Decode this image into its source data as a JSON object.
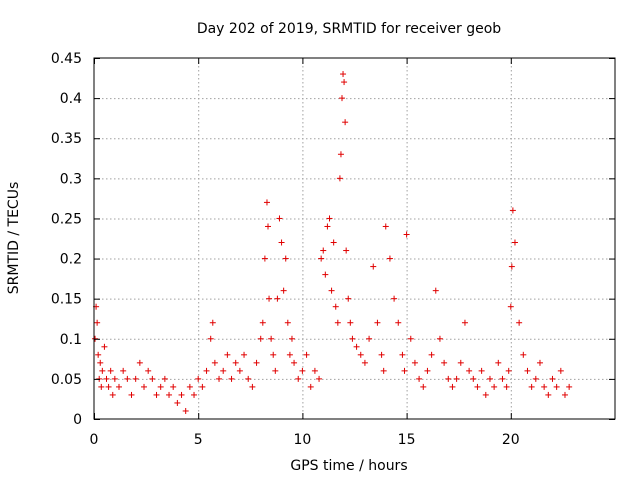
{
  "chart_data": {
    "type": "scatter",
    "title": "Day 202 of 2019, SRMTID for receiver geob",
    "xlabel": "GPS time / hours",
    "ylabel": "SRMTID / TECUs",
    "xlim": [
      0,
      25
    ],
    "ylim": [
      0,
      0.45
    ],
    "xticks": [
      0,
      5,
      10,
      15,
      20
    ],
    "yticks": [
      0,
      0.05,
      0.1,
      0.15,
      0.2,
      0.25,
      0.3,
      0.35,
      0.4,
      0.45
    ],
    "xtick_labels": [
      "0",
      "5",
      "10",
      "15",
      "20"
    ],
    "ytick_labels": [
      "0",
      "0.05",
      "0.1",
      "0.15",
      "0.2",
      "0.25",
      "0.3",
      "0.35",
      "0.4",
      "0.45"
    ],
    "grid": true,
    "marker": "+",
    "color": "#e00000",
    "series": [
      {
        "name": "SRMTID",
        "x": [
          0.05,
          0.1,
          0.15,
          0.2,
          0.25,
          0.3,
          0.35,
          0.4,
          0.5,
          0.6,
          0.7,
          0.8,
          0.9,
          1.0,
          1.2,
          1.4,
          1.6,
          1.8,
          2.0,
          2.2,
          2.4,
          2.6,
          2.8,
          3.0,
          3.2,
          3.4,
          3.6,
          3.8,
          4.0,
          4.2,
          4.4,
          4.6,
          4.8,
          5.0,
          5.2,
          5.4,
          5.6,
          5.7,
          5.8,
          6.0,
          6.2,
          6.4,
          6.6,
          6.8,
          7.0,
          7.2,
          7.4,
          7.6,
          7.8,
          8.0,
          8.1,
          8.2,
          8.3,
          8.35,
          8.4,
          8.5,
          8.6,
          8.7,
          8.8,
          8.9,
          9.0,
          9.1,
          9.2,
          9.3,
          9.4,
          9.5,
          9.6,
          9.8,
          10.0,
          10.2,
          10.4,
          10.6,
          10.8,
          10.9,
          11.0,
          11.1,
          11.2,
          11.3,
          11.4,
          11.5,
          11.6,
          11.7,
          11.8,
          11.85,
          11.9,
          11.95,
          12.0,
          12.05,
          12.1,
          12.2,
          12.3,
          12.4,
          12.6,
          12.8,
          13.0,
          13.2,
          13.4,
          13.6,
          13.8,
          13.9,
          14.0,
          14.2,
          14.4,
          14.6,
          14.8,
          14.9,
          15.0,
          15.2,
          15.4,
          15.6,
          15.8,
          16.0,
          16.2,
          16.4,
          16.6,
          16.8,
          17.0,
          17.2,
          17.4,
          17.6,
          17.8,
          18.0,
          18.2,
          18.4,
          18.6,
          18.8,
          19.0,
          19.2,
          19.4,
          19.6,
          19.8,
          19.9,
          20.0,
          20.05,
          20.1,
          20.2,
          20.4,
          20.6,
          20.8,
          21.0,
          21.2,
          21.4,
          21.6,
          21.8,
          22.0,
          22.2,
          22.4,
          22.6,
          22.8
        ],
        "y": [
          0.1,
          0.14,
          0.12,
          0.08,
          0.05,
          0.07,
          0.04,
          0.06,
          0.09,
          0.05,
          0.04,
          0.06,
          0.03,
          0.05,
          0.04,
          0.06,
          0.05,
          0.03,
          0.05,
          0.07,
          0.04,
          0.06,
          0.05,
          0.03,
          0.04,
          0.05,
          0.03,
          0.04,
          0.02,
          0.03,
          0.01,
          0.04,
          0.03,
          0.05,
          0.04,
          0.06,
          0.1,
          0.12,
          0.07,
          0.05,
          0.06,
          0.08,
          0.05,
          0.07,
          0.06,
          0.08,
          0.05,
          0.04,
          0.07,
          0.1,
          0.12,
          0.2,
          0.27,
          0.24,
          0.15,
          0.1,
          0.08,
          0.06,
          0.15,
          0.25,
          0.22,
          0.16,
          0.2,
          0.12,
          0.08,
          0.1,
          0.07,
          0.05,
          0.06,
          0.08,
          0.04,
          0.06,
          0.05,
          0.2,
          0.21,
          0.18,
          0.24,
          0.25,
          0.16,
          0.22,
          0.14,
          0.12,
          0.3,
          0.33,
          0.4,
          0.43,
          0.42,
          0.37,
          0.21,
          0.15,
          0.12,
          0.1,
          0.09,
          0.08,
          0.07,
          0.1,
          0.19,
          0.12,
          0.08,
          0.06,
          0.24,
          0.2,
          0.15,
          0.12,
          0.08,
          0.06,
          0.23,
          0.1,
          0.07,
          0.05,
          0.04,
          0.06,
          0.08,
          0.16,
          0.1,
          0.07,
          0.05,
          0.04,
          0.05,
          0.07,
          0.12,
          0.06,
          0.05,
          0.04,
          0.06,
          0.03,
          0.05,
          0.04,
          0.07,
          0.05,
          0.04,
          0.06,
          0.14,
          0.19,
          0.26,
          0.22,
          0.12,
          0.08,
          0.06,
          0.04,
          0.05,
          0.07,
          0.04,
          0.03,
          0.05,
          0.04,
          0.06,
          0.03,
          0.04
        ]
      }
    ]
  }
}
